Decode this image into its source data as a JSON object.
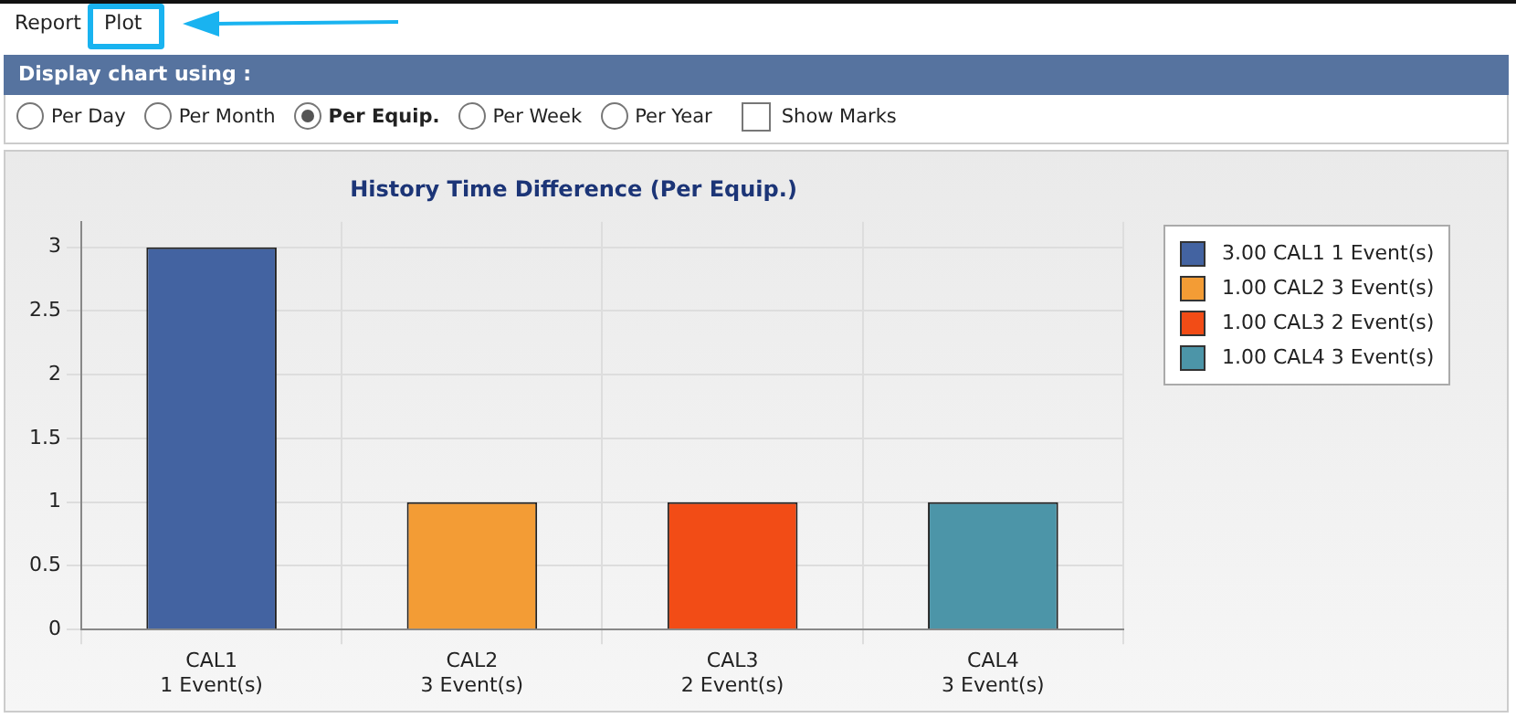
{
  "chart_data": {
    "type": "bar",
    "title": "History Time Difference (Per Equip.)",
    "categories": [
      "CAL1\n1 Event(s)",
      "CAL2\n3 Event(s)",
      "CAL3\n2 Event(s)",
      "CAL4\n3 Event(s)"
    ],
    "series": [
      {
        "name": "3.00 CAL1 1 Event(s)",
        "color": "#4363a1",
        "values": [
          3,
          null,
          null,
          null
        ]
      },
      {
        "name": "1.00 CAL2 3 Event(s)",
        "color": "#f39c35",
        "values": [
          null,
          1,
          null,
          null
        ]
      },
      {
        "name": "1.00 CAL3 2 Event(s)",
        "color": "#f24c16",
        "values": [
          null,
          null,
          1,
          null
        ]
      },
      {
        "name": "1.00 CAL4 3 Event(s)",
        "color": "#4c95a8",
        "values": [
          null,
          null,
          null,
          1
        ]
      }
    ],
    "ylim": [
      0,
      3.2
    ],
    "yticks": [
      0,
      0.5,
      1,
      1.5,
      2,
      2.5,
      3
    ],
    "grid": true,
    "legend": "right",
    "annotations": [
      "Report",
      "Plot",
      "Display chart using :",
      "Per Day",
      "Per Month",
      "Per Equip.",
      "Per Week",
      "Per Year",
      "Show Marks"
    ]
  }
}
